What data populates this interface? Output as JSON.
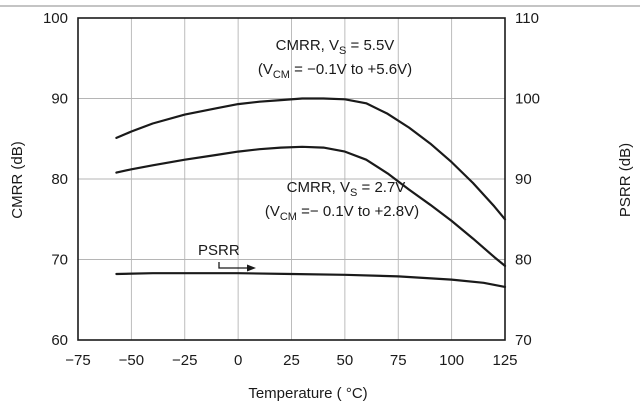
{
  "chart_data": {
    "type": "line",
    "title": "",
    "xlabel": "Temperature ( °C)",
    "ylabel": "CMRR (dB)",
    "y2label": "PSRR (dB)",
    "xlim": [
      -75,
      125
    ],
    "ylim": [
      60,
      100
    ],
    "y2lim": [
      70,
      110
    ],
    "xticks": [
      "−75",
      "−50",
      "−25",
      "0",
      "25",
      "50",
      "75",
      "100",
      "125"
    ],
    "yticks": [
      "60",
      "70",
      "80",
      "90",
      "100"
    ],
    "y2ticks": [
      "70",
      "80",
      "90",
      "100",
      "110"
    ],
    "grid": true,
    "series": [
      {
        "name": "CMRR, VS = 5.5V (VCM = −0.1V to +5.6V)",
        "axis": "left",
        "x": [
          -57,
          -50,
          -40,
          -25,
          -10,
          0,
          10,
          20,
          30,
          35,
          40,
          50,
          60,
          70,
          80,
          90,
          100,
          110,
          120,
          125
        ],
        "y": [
          85.1,
          85.9,
          86.9,
          88.0,
          88.8,
          89.3,
          89.6,
          89.8,
          90.0,
          90.0,
          90.0,
          89.9,
          89.4,
          88.1,
          86.4,
          84.4,
          82.1,
          79.5,
          76.6,
          75.0
        ]
      },
      {
        "name": "CMRR, VS = 2.7V (VCM = − 0.1V to +2.8V)",
        "axis": "left",
        "x": [
          -57,
          -50,
          -40,
          -25,
          -10,
          0,
          10,
          20,
          30,
          40,
          50,
          60,
          70,
          80,
          90,
          100,
          110,
          120,
          125
        ],
        "y": [
          80.8,
          81.2,
          81.7,
          82.4,
          83.0,
          83.4,
          83.7,
          83.9,
          84.0,
          83.9,
          83.4,
          82.4,
          80.7,
          78.7,
          76.8,
          74.8,
          72.6,
          70.3,
          69.2
        ]
      },
      {
        "name": "PSRR",
        "axis": "right",
        "x": [
          -57,
          -40,
          -25,
          0,
          25,
          50,
          75,
          100,
          115,
          125
        ],
        "y": [
          78.2,
          78.3,
          78.3,
          78.3,
          78.2,
          78.1,
          77.9,
          77.5,
          77.1,
          76.6
        ]
      }
    ],
    "annotations": {
      "cmrr55_line1_main": "CMRR, V",
      "cmrr55_line1_sub": "S",
      "cmrr55_line1_tail": " = 5.5V",
      "cmrr55_line2_open": "(V",
      "cmrr55_line2_sub": "CM",
      "cmrr55_line2_tail": " = −0.1V to +5.6V)",
      "cmrr27_line1_main": "CMRR, V",
      "cmrr27_line1_sub": "S",
      "cmrr27_line1_tail": " = 2.7V",
      "cmrr27_line2_open": "(V",
      "cmrr27_line2_sub": "CM",
      "cmrr27_line2_tail": " =− 0.1V to +2.8V)",
      "psrr_label": "PSRR"
    }
  }
}
